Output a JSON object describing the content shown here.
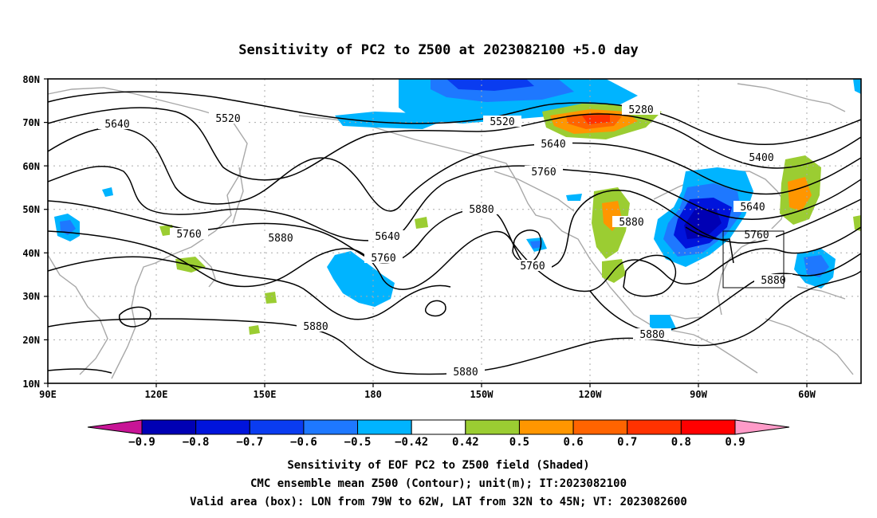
{
  "title": "Sensitivity of PC2 to Z500 at 2023082100 +5.0 day",
  "map": {
    "lon_ticks": [
      "90E",
      "120E",
      "150E",
      "180",
      "150W",
      "120W",
      "90W",
      "60W"
    ],
    "lat_ticks": [
      "80N",
      "70N",
      "60N",
      "50N",
      "40N",
      "30N",
      "20N",
      "10N"
    ],
    "valid_box": {
      "lon_west": "79W",
      "lon_east": "62W",
      "lat_south": "32N",
      "lat_north": "45N"
    },
    "contour_labels": [
      "5640",
      "5520",
      "5520",
      "5280",
      "5640",
      "5400",
      "5760",
      "5880",
      "5640",
      "5760",
      "5760",
      "5880",
      "5760",
      "5640",
      "5880",
      "5760",
      "5880",
      "5880",
      "5880",
      "5880"
    ]
  },
  "colorbar": {
    "labels": [
      "-0.9",
      "-0.8",
      "-0.7",
      "-0.6",
      "-0.5",
      "-0.42",
      "0.42",
      "0.5",
      "0.6",
      "0.7",
      "0.8",
      "0.9"
    ],
    "colors": [
      "#c81496",
      "#0000b4",
      "#0014dc",
      "#0a3cf0",
      "#1e78ff",
      "#00b4ff",
      "#ffffff",
      "#9bcd32",
      "#ff9600",
      "#ff6400",
      "#ff3200",
      "#ff0000",
      "#ff9bc8"
    ]
  },
  "footer": {
    "line1": "Sensitivity of EOF PC2 to Z500 field (Shaded)",
    "line2": "CMC ensemble mean Z500 (Contour); unit(m); IT:2023082100",
    "line3": "Valid area (box): LON from 79W to 62W, LAT from 32N to 45N; VT: 2023082600"
  }
}
